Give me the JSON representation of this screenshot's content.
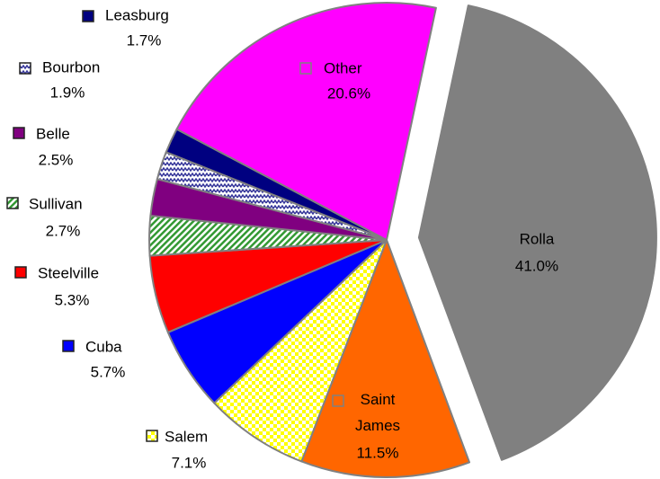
{
  "chart_data": {
    "type": "pie",
    "categories": [
      "Rolla",
      "Saint James",
      "Salem",
      "Cuba",
      "Steelville",
      "Sullivan",
      "Belle",
      "Bourbon",
      "Leasburg",
      "Other"
    ],
    "values": [
      41.0,
      11.5,
      7.1,
      5.7,
      5.3,
      2.7,
      2.5,
      1.9,
      1.7,
      20.6
    ],
    "value_labels": [
      "41.0%",
      "11.5%",
      "7.1%",
      "5.7%",
      "5.3%",
      "2.7%",
      "2.5%",
      "1.9%",
      "1.7%",
      "20.6%"
    ],
    "colors": [
      "#808080",
      "#ff6600",
      "#ffff00",
      "#0000ff",
      "#ff0000",
      "#339933",
      "#800080",
      "#333399",
      "#000080",
      "#ff00ff"
    ],
    "patterns": [
      null,
      null,
      "checker",
      null,
      null,
      "diagonal",
      null,
      "wave",
      null,
      null
    ],
    "exploded": [
      "Rolla"
    ]
  }
}
